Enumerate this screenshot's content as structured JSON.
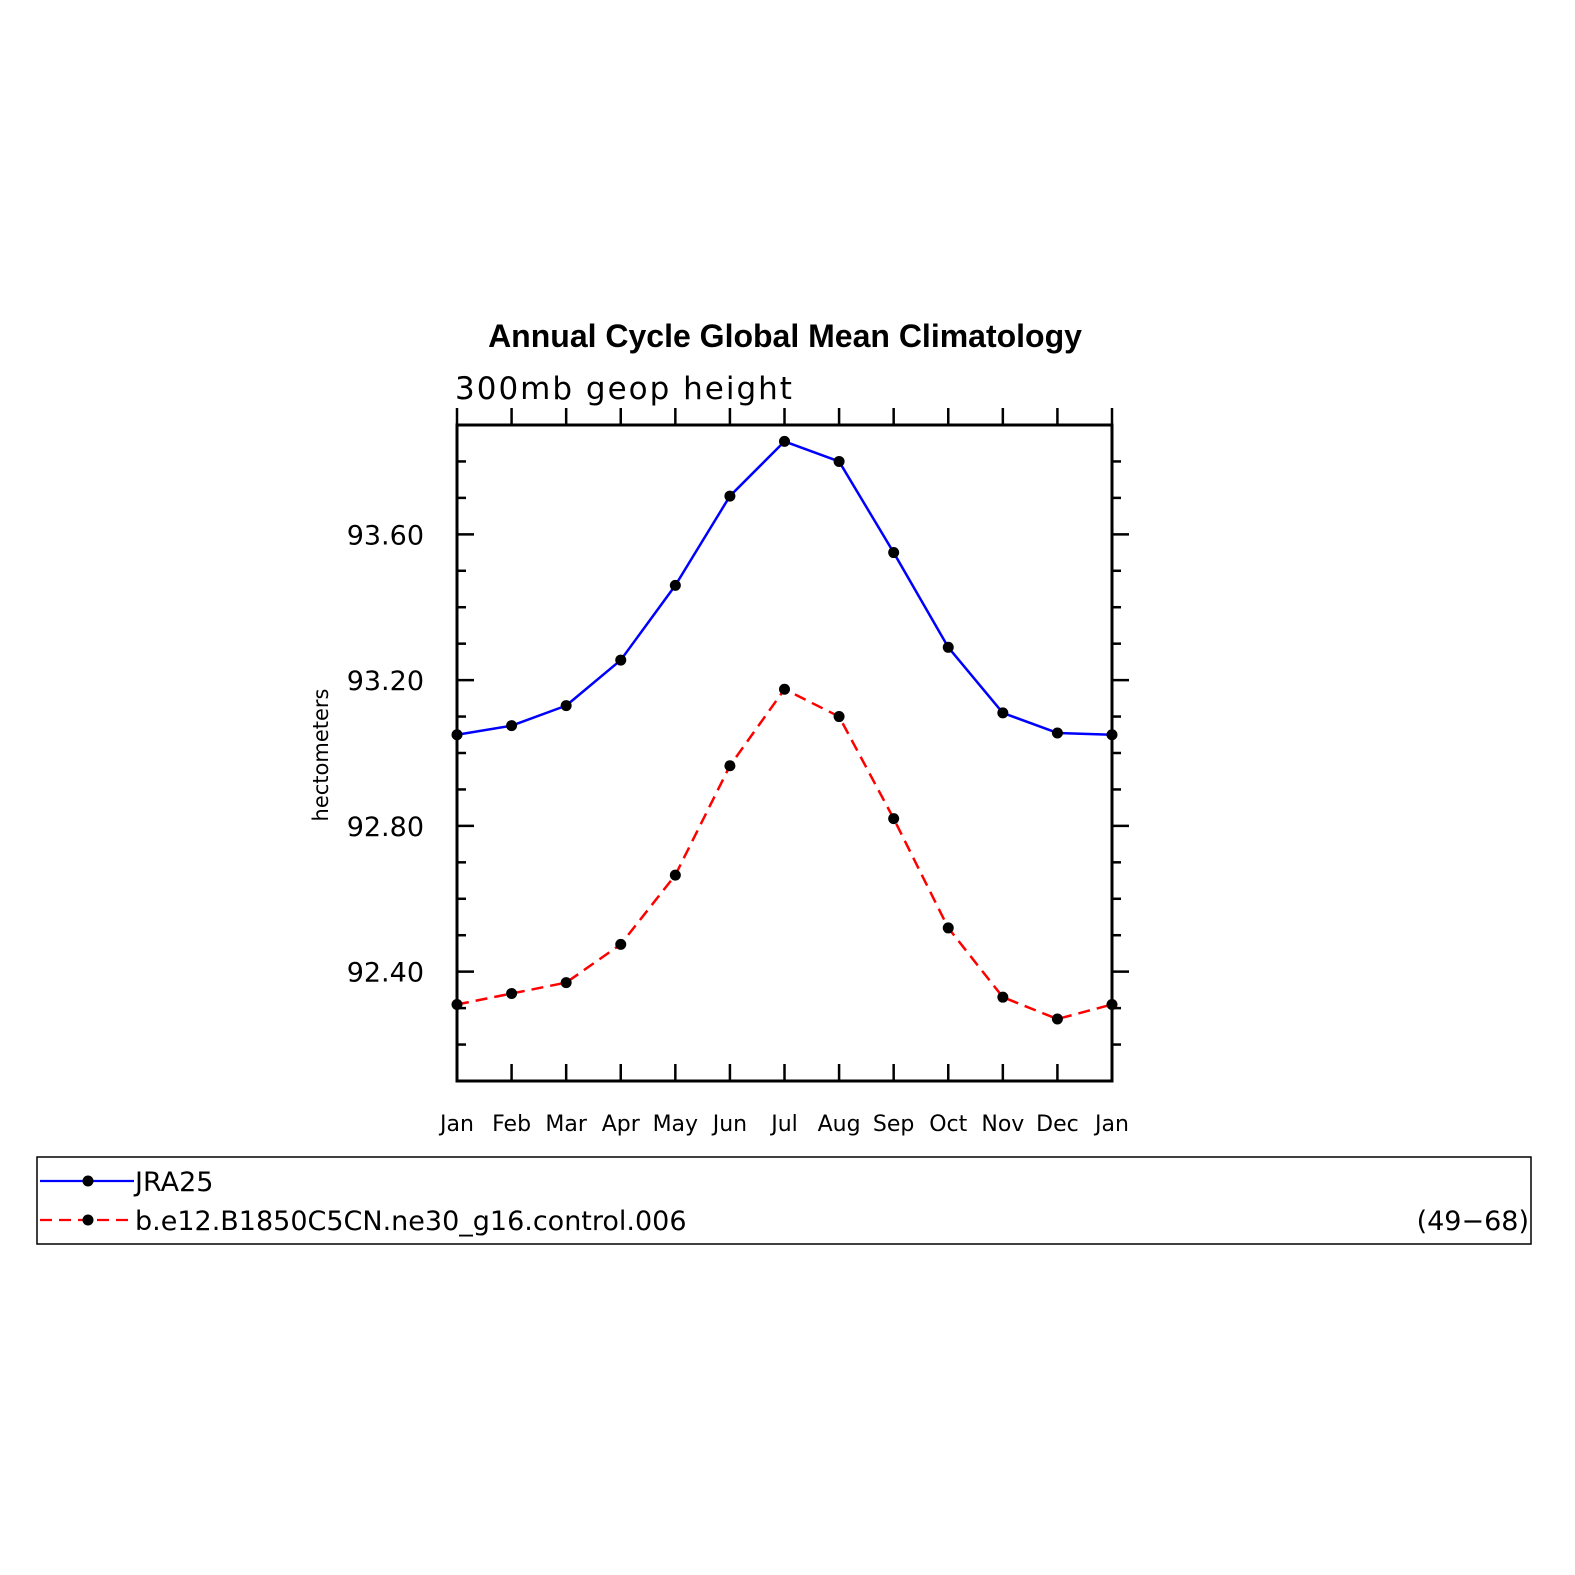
{
  "chart_data": {
    "type": "line",
    "title": "Annual Cycle Global Mean Climatology",
    "subtitle": "300mb geop height",
    "ylabel": "hectometers",
    "xlabel": "",
    "categories": [
      "Jan",
      "Feb",
      "Mar",
      "Apr",
      "May",
      "Jun",
      "Jul",
      "Aug",
      "Sep",
      "Oct",
      "Nov",
      "Dec",
      "Jan"
    ],
    "ylim": [
      92.1,
      93.9
    ],
    "yticks": [
      "92.40",
      "92.80",
      "93.20",
      "93.60"
    ],
    "grid": false,
    "legend_position": "bottom",
    "series": [
      {
        "name": "JRA25",
        "color": "#0000ff",
        "dash": "solid",
        "values": [
          93.05,
          93.075,
          93.13,
          93.255,
          93.46,
          93.705,
          93.855,
          93.8,
          93.55,
          93.29,
          93.11,
          93.055,
          93.05
        ]
      },
      {
        "name": "b.e12.B1850C5CN.ne30_g16.control.006",
        "color": "#ff0000",
        "dash": "dashed",
        "values": [
          92.31,
          92.34,
          92.37,
          92.475,
          92.665,
          92.965,
          93.175,
          93.1,
          92.82,
          92.52,
          92.33,
          92.27,
          92.31
        ]
      }
    ],
    "legend_note": "(49−68)"
  }
}
